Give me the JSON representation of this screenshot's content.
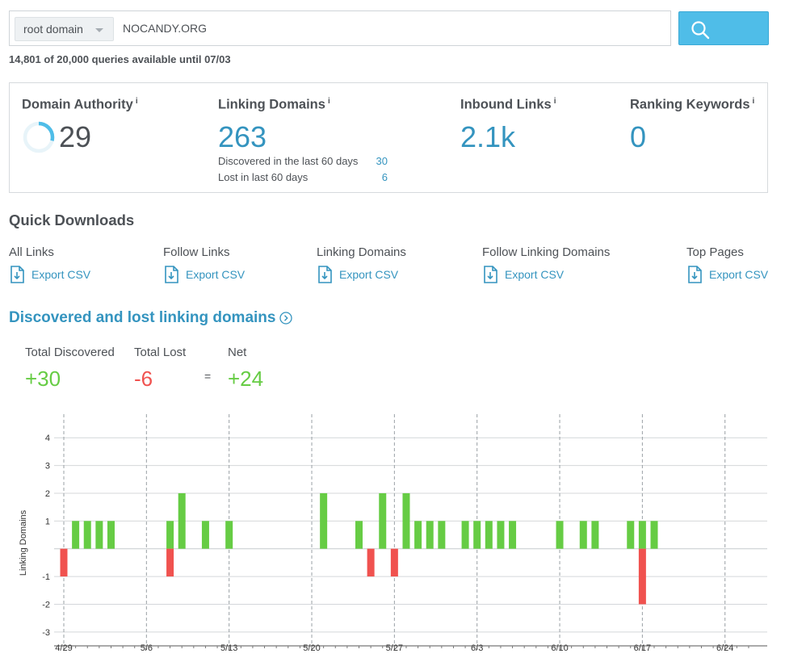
{
  "search": {
    "scope": "root domain",
    "query": "NOCANDY.ORG"
  },
  "quota_text": "14,801 of 20,000 queries available until 07/03",
  "metrics": {
    "domain_authority": {
      "title": "Domain Authority",
      "info": "i",
      "value": "29",
      "score": 29
    },
    "linking_domains": {
      "title": "Linking Domains",
      "info": "i",
      "value": "263",
      "discovered_label": "Discovered in the last 60 days",
      "discovered_value": "30",
      "lost_label": "Lost in last 60 days",
      "lost_value": "6"
    },
    "inbound_links": {
      "title": "Inbound Links",
      "info": "i",
      "value": "2.1k"
    },
    "ranking_keywords": {
      "title": "Ranking Keywords",
      "info": "i",
      "value": "0"
    }
  },
  "quick_downloads": {
    "title": "Quick Downloads",
    "items": [
      {
        "label": "All Links",
        "link": "Export CSV"
      },
      {
        "label": "Follow Links",
        "link": "Export CSV"
      },
      {
        "label": "Linking Domains",
        "link": "Export CSV"
      },
      {
        "label": "Follow Linking Domains",
        "link": "Export CSV"
      },
      {
        "label": "Top Pages",
        "link": "Export CSV"
      }
    ]
  },
  "discovered_lost": {
    "title": "Discovered and lost linking domains",
    "total_discovered_label": "Total Discovered",
    "total_discovered_value": "+30",
    "total_lost_label": "Total Lost",
    "total_lost_value": "-6",
    "equals": "=",
    "net_label": "Net",
    "net_value": "+24"
  },
  "colors": {
    "accent": "#3494bf",
    "search_button": "#4fbde8",
    "positive": "#66cc44",
    "negative": "#f0524f",
    "text": "#4d5156"
  },
  "icons": {
    "search": "search-icon",
    "download": "download-file-icon",
    "info": "info-icon",
    "chevron": "chevron-right-circle-icon",
    "caret": "caret-down-icon"
  },
  "chart_data": {
    "type": "bar",
    "ylabel": "Linking Domains",
    "ylim": [
      -3.5,
      4.5
    ],
    "yticks": [
      -3,
      -2,
      -1,
      1,
      2,
      3,
      4
    ],
    "x_start": "4/29",
    "x_end": "6/26",
    "xticks": [
      "4/29",
      "5/6",
      "5/13",
      "5/20",
      "5/27",
      "6/3",
      "6/10",
      "6/17",
      "6/24"
    ],
    "grid": true,
    "series": [
      {
        "color": "#66cc44",
        "points": [
          {
            "x": "4/30",
            "y": 1
          },
          {
            "x": "5/1",
            "y": 1
          },
          {
            "x": "5/2",
            "y": 1
          },
          {
            "x": "5/3",
            "y": 1
          },
          {
            "x": "5/8",
            "y": 1
          },
          {
            "x": "5/9",
            "y": 2
          },
          {
            "x": "5/11",
            "y": 1
          },
          {
            "x": "5/13",
            "y": 1
          },
          {
            "x": "5/21",
            "y": 2
          },
          {
            "x": "5/24",
            "y": 1
          },
          {
            "x": "5/26",
            "y": 2
          },
          {
            "x": "5/28",
            "y": 2
          },
          {
            "x": "5/29",
            "y": 1
          },
          {
            "x": "5/30",
            "y": 1
          },
          {
            "x": "5/31",
            "y": 1
          },
          {
            "x": "6/2",
            "y": 1
          },
          {
            "x": "6/3",
            "y": 1
          },
          {
            "x": "6/4",
            "y": 1
          },
          {
            "x": "6/5",
            "y": 1
          },
          {
            "x": "6/6",
            "y": 1
          },
          {
            "x": "6/10",
            "y": 1
          },
          {
            "x": "6/12",
            "y": 1
          },
          {
            "x": "6/13",
            "y": 1
          },
          {
            "x": "6/16",
            "y": 1
          },
          {
            "x": "6/17",
            "y": 1
          },
          {
            "x": "6/18",
            "y": 1
          }
        ]
      },
      {
        "color": "#f0524f",
        "points": [
          {
            "x": "4/29",
            "y": -1
          },
          {
            "x": "5/8",
            "y": -1
          },
          {
            "x": "5/25",
            "y": -1
          },
          {
            "x": "5/27",
            "y": -1
          },
          {
            "x": "6/17",
            "y": -2
          }
        ]
      }
    ]
  }
}
